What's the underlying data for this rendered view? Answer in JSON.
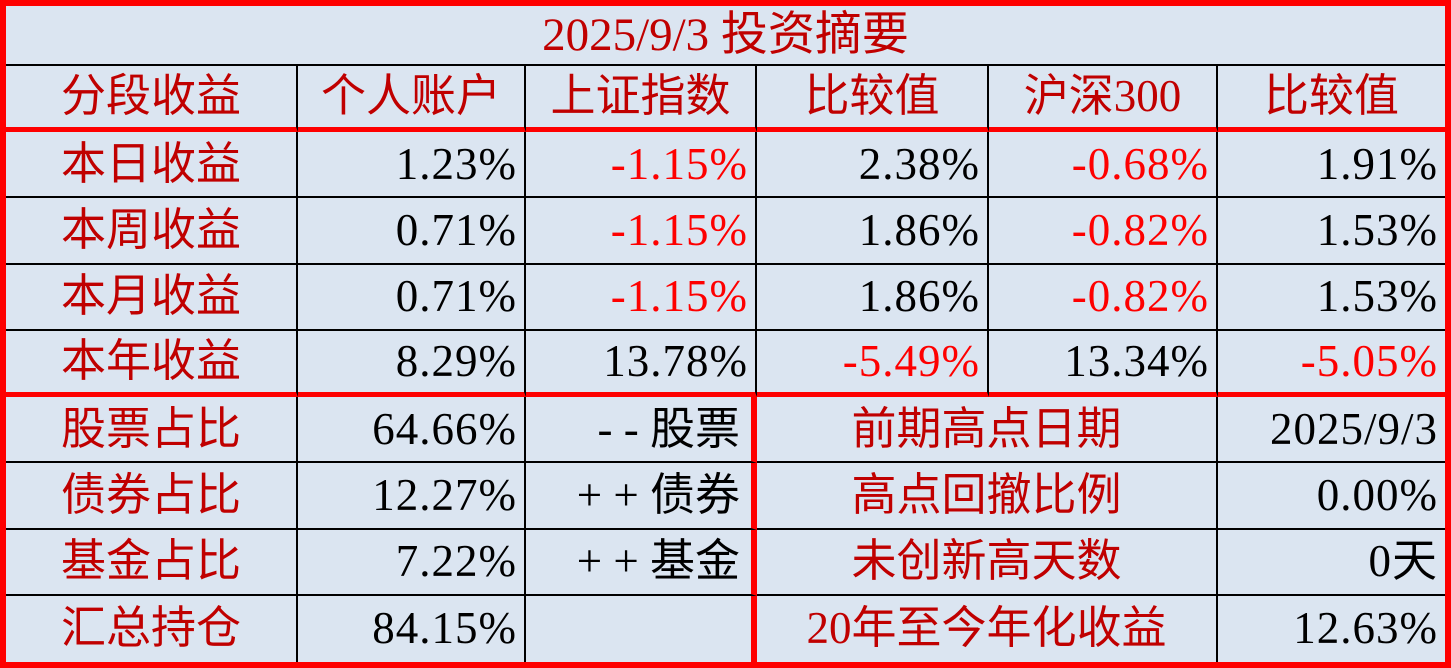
{
  "title": "2025/9/3 投资摘要",
  "colors": {
    "background": "#dbe5f1",
    "label_red": "#c00000",
    "negative_red": "#fe0000",
    "value_black": "#000000",
    "thick_border_red": "#fe0000",
    "thin_border_black": "#000000"
  },
  "chart_data": {
    "type": "table",
    "title": "2025/9/3 投资摘要",
    "columns": [
      "分段收益",
      "个人账户",
      "上证指数",
      "比较值",
      "沪深300",
      "比较值"
    ],
    "rows": [
      [
        "本日收益",
        "1.23%",
        "-1.15%",
        "2.38%",
        "-0.68%",
        "1.91%"
      ],
      [
        "本周收益",
        "0.71%",
        "-1.15%",
        "1.86%",
        "-0.82%",
        "1.53%"
      ],
      [
        "本月收益",
        "0.71%",
        "-1.15%",
        "1.86%",
        "-0.82%",
        "1.53%"
      ],
      [
        "本年收益",
        "8.29%",
        "13.78%",
        "-5.49%",
        "13.34%",
        "-5.05%"
      ]
    ],
    "footer_rows": [
      [
        "股票占比",
        "64.66%",
        "- - 股票",
        "前期高点日期",
        "2025/9/3"
      ],
      [
        "债券占比",
        "12.27%",
        "+ + 债券",
        "高点回撤比例",
        "0.00%"
      ],
      [
        "基金占比",
        "7.22%",
        "+ + 基金",
        "未创新高天数",
        "0天"
      ],
      [
        "汇总持仓",
        "84.15%",
        "",
        "20年至今年化收益",
        "12.63%"
      ]
    ],
    "layout_hints": {
      "negative_values_color": "#fe0000",
      "label_color": "#c00000",
      "grid": "on",
      "thick_red_separators": [
        "below header row",
        "below 本年收益 row",
        "vertical before stats block",
        "outer frame"
      ]
    }
  }
}
